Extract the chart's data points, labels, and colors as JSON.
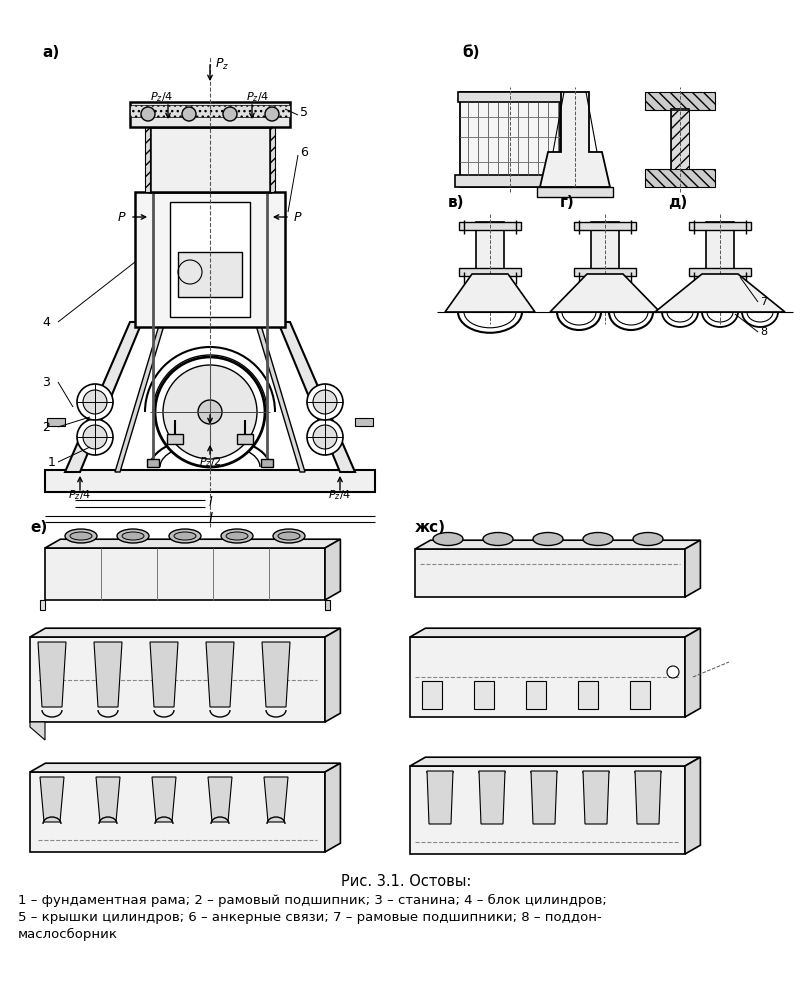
{
  "title": "Рис. 3.1. Остовы:",
  "caption_line1": "1 – фундаментная рама; 2 – рамовый подшипник; 3 – станина; 4 – блок цилиндров;",
  "caption_line2": "5 – крышки цилиндров; 6 – анкерные связи; 7 – рамовые подшипники; 8 – поддон-",
  "caption_line3": "маслосборник",
  "bg_color": "#ffffff",
  "label_a": "а)",
  "label_b": "б)",
  "label_v": "в)",
  "label_g": "г)",
  "label_d": "д)",
  "label_e": "е)",
  "label_zh": "жс)",
  "num1": "1",
  "num2": "2",
  "num3": "3",
  "num4": "4",
  "num5": "5",
  "num6": "6",
  "num7": "7",
  "num8": "8",
  "Pz": "$P_z$",
  "P4_tl": "$P_z/4$",
  "P4_tr": "$P_z/4$",
  "P4_bl": "$P_z/4$",
  "P4_br": "$P_z/4$",
  "P2": "$P_z/2$",
  "P_left": "$P$",
  "P_right": "$P$",
  "l_label": "l",
  "L_label": "l"
}
